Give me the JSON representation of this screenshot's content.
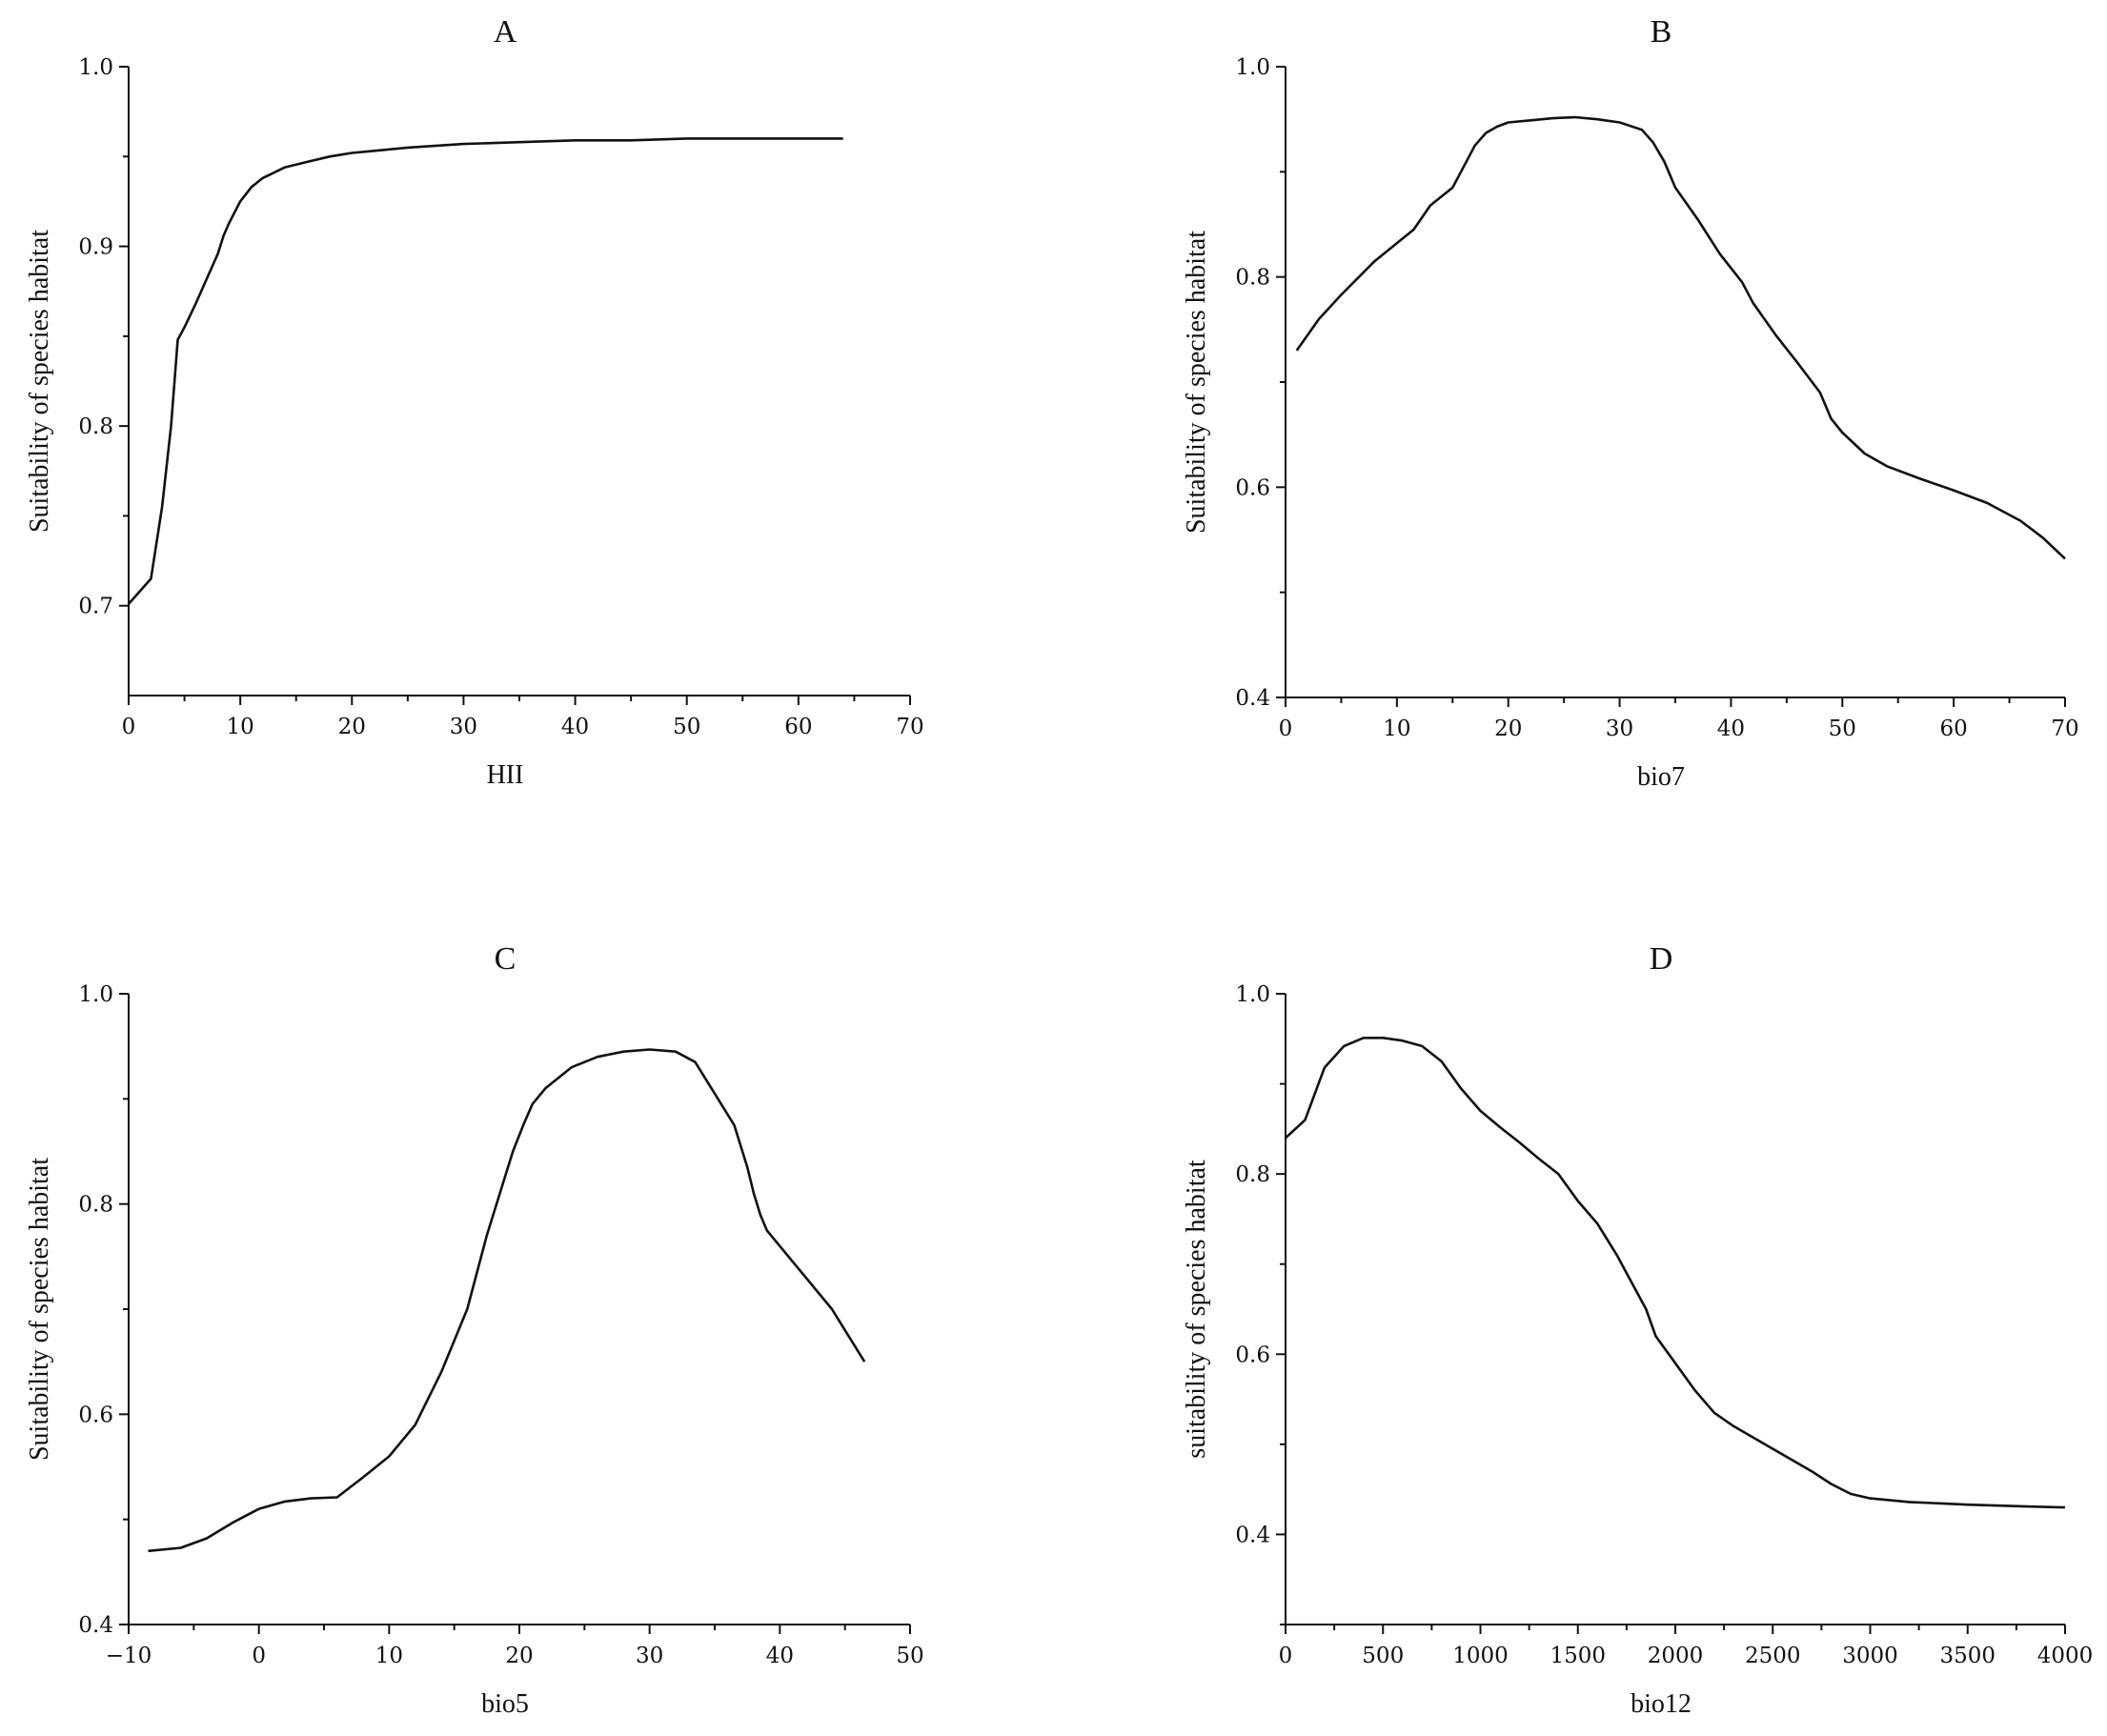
{
  "chart_data": [
    {
      "type": "line",
      "title": "A",
      "xlabel": "HII",
      "ylabel": "Suitability of species habitat",
      "xlim": [
        0,
        70
      ],
      "ylim": [
        0.65,
        1.0
      ],
      "xticks": [
        0,
        10,
        20,
        30,
        40,
        50,
        60,
        70
      ],
      "yticks": [
        0.7,
        0.8,
        0.9,
        1.0
      ],
      "ytick_labels": [
        "0.7",
        "0.8",
        "0.9",
        "1.0"
      ],
      "grid": false,
      "series": [
        {
          "x": [
            0,
            1,
            2,
            3,
            3.8,
            4.4,
            5,
            6,
            7,
            8,
            8.5,
            9,
            10,
            11,
            12,
            13,
            14,
            16,
            18,
            20,
            25,
            30,
            35,
            40,
            45,
            50,
            55,
            60,
            64
          ],
          "y": [
            0.701,
            0.708,
            0.715,
            0.755,
            0.8,
            0.848,
            0.855,
            0.868,
            0.882,
            0.896,
            0.906,
            0.913,
            0.925,
            0.933,
            0.938,
            0.941,
            0.944,
            0.947,
            0.95,
            0.952,
            0.955,
            0.957,
            0.958,
            0.959,
            0.959,
            0.96,
            0.96,
            0.96,
            0.96
          ]
        }
      ]
    },
    {
      "type": "line",
      "title": "B",
      "xlabel": "bio7",
      "ylabel": "Suitability of species habitat",
      "xlim": [
        0,
        70
      ],
      "ylim": [
        0.4,
        1.0
      ],
      "xticks": [
        0,
        10,
        20,
        30,
        40,
        50,
        60,
        70
      ],
      "yticks": [
        0.4,
        0.6,
        0.8,
        1.0
      ],
      "ytick_labels": [
        "0.4",
        "0.6",
        "0.8",
        "1.0"
      ],
      "grid": false,
      "series": [
        {
          "x": [
            1,
            3,
            5,
            8,
            11.5,
            13,
            15,
            16,
            17,
            18,
            19,
            20,
            22,
            24,
            26,
            28,
            30,
            32,
            33,
            34,
            35,
            37,
            39,
            41,
            42,
            44,
            46,
            48,
            49,
            50,
            52,
            54,
            57,
            60,
            63,
            66,
            68,
            70
          ],
          "y": [
            0.73,
            0.76,
            0.783,
            0.815,
            0.845,
            0.868,
            0.885,
            0.905,
            0.925,
            0.937,
            0.943,
            0.947,
            0.949,
            0.951,
            0.952,
            0.95,
            0.947,
            0.94,
            0.928,
            0.91,
            0.885,
            0.855,
            0.822,
            0.795,
            0.775,
            0.745,
            0.718,
            0.69,
            0.665,
            0.652,
            0.632,
            0.62,
            0.608,
            0.597,
            0.585,
            0.568,
            0.552,
            0.532
          ]
        }
      ]
    },
    {
      "type": "line",
      "title": "C",
      "xlabel": "bio5",
      "ylabel": "Suitability of species habitat",
      "xlim": [
        -10,
        50
      ],
      "ylim": [
        0.4,
        1.0
      ],
      "xticks": [
        -10,
        0,
        10,
        20,
        30,
        40,
        50
      ],
      "yticks": [
        0.4,
        0.6,
        0.8,
        1.0
      ],
      "ytick_labels": [
        "0.4",
        "0.6",
        "0.8",
        "1.0"
      ],
      "grid": false,
      "series": [
        {
          "x": [
            -8.5,
            -6,
            -4,
            -2,
            0,
            2,
            4,
            6,
            8,
            10,
            12,
            14,
            16,
            17.5,
            18.5,
            19.5,
            20.3,
            21,
            22,
            24,
            26,
            28,
            30,
            32,
            33.5,
            35,
            36.5,
            37.5,
            38,
            38.5,
            39,
            40,
            42,
            44,
            46.5
          ],
          "y": [
            0.47,
            0.473,
            0.482,
            0.497,
            0.51,
            0.517,
            0.52,
            0.521,
            0.54,
            0.56,
            0.59,
            0.64,
            0.7,
            0.77,
            0.81,
            0.85,
            0.875,
            0.895,
            0.91,
            0.93,
            0.94,
            0.945,
            0.947,
            0.945,
            0.935,
            0.905,
            0.875,
            0.835,
            0.81,
            0.79,
            0.775,
            0.76,
            0.73,
            0.7,
            0.65
          ]
        }
      ]
    },
    {
      "type": "line",
      "title": "D",
      "xlabel": "bio12",
      "ylabel": "suitability of species habitat",
      "xlim": [
        0,
        4000
      ],
      "ylim": [
        0.3,
        1.0
      ],
      "xticks": [
        0,
        500,
        1000,
        1500,
        2000,
        2500,
        3000,
        3500,
        4000
      ],
      "yticks": [
        0.4,
        0.6,
        0.8,
        1.0
      ],
      "ytick_labels": [
        "0.4",
        "0.6",
        "0.8",
        "1.0"
      ],
      "grid": false,
      "series": [
        {
          "x": [
            0,
            100,
            200,
            300,
            400,
            500,
            600,
            700,
            800,
            900,
            1000,
            1100,
            1200,
            1300,
            1400,
            1500,
            1600,
            1700,
            1750,
            1850,
            1900,
            2000,
            2100,
            2200,
            2300,
            2500,
            2700,
            2800,
            2900,
            3000,
            3200,
            3500,
            3800,
            4000
          ],
          "y": [
            0.84,
            0.86,
            0.918,
            0.942,
            0.951,
            0.951,
            0.948,
            0.942,
            0.925,
            0.895,
            0.87,
            0.852,
            0.835,
            0.817,
            0.8,
            0.77,
            0.745,
            0.71,
            0.69,
            0.65,
            0.62,
            0.59,
            0.56,
            0.535,
            0.52,
            0.495,
            0.47,
            0.456,
            0.445,
            0.44,
            0.436,
            0.433,
            0.431,
            0.43
          ]
        }
      ]
    }
  ]
}
